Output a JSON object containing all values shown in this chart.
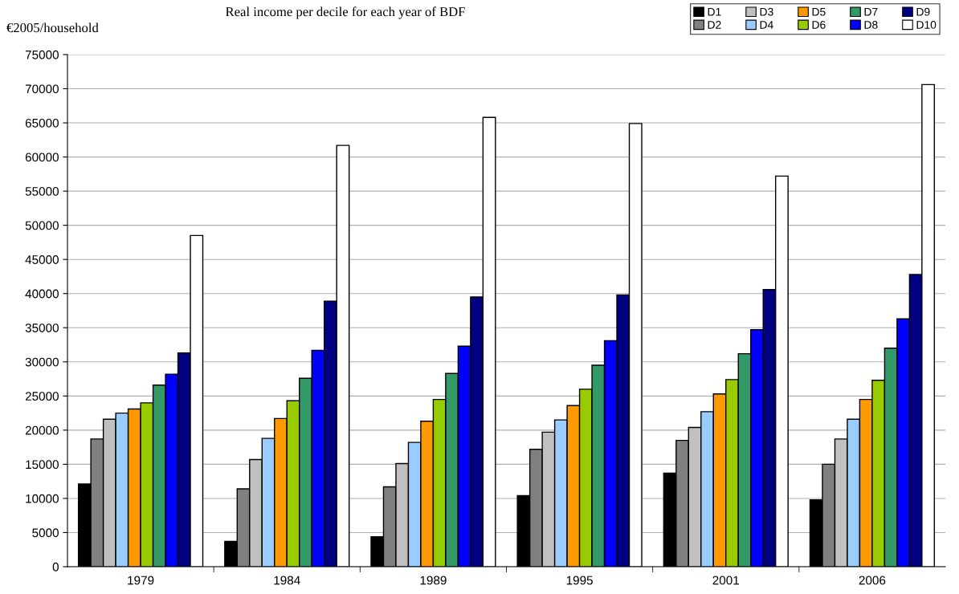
{
  "chart_data": {
    "type": "bar",
    "title": "Real income per decile for each year of BDF",
    "ylabel": "€2005/household",
    "categories": [
      "1979",
      "1984",
      "1989",
      "1995",
      "2001",
      "2006"
    ],
    "series": [
      {
        "name": "D1",
        "color": "#000000",
        "values": [
          12100,
          3700,
          4400,
          10400,
          13700,
          9800
        ]
      },
      {
        "name": "D2",
        "color": "#808080",
        "values": [
          18700,
          11400,
          11700,
          17200,
          18500,
          15000
        ]
      },
      {
        "name": "D3",
        "color": "#c0c0c0",
        "values": [
          21600,
          15700,
          15100,
          19700,
          20400,
          18700
        ]
      },
      {
        "name": "D4",
        "color": "#99ccff",
        "values": [
          22500,
          18800,
          18200,
          21500,
          22700,
          21600
        ]
      },
      {
        "name": "D5",
        "color": "#ff9900",
        "values": [
          23100,
          21700,
          21300,
          23600,
          25300,
          24500
        ]
      },
      {
        "name": "D6",
        "color": "#99cc00",
        "values": [
          24000,
          24300,
          24500,
          26000,
          27400,
          27300
        ]
      },
      {
        "name": "D7",
        "color": "#339966",
        "values": [
          26600,
          27600,
          28300,
          29500,
          31200,
          32000
        ]
      },
      {
        "name": "D8",
        "color": "#0000ff",
        "values": [
          28200,
          31700,
          32300,
          33100,
          34700,
          36300
        ]
      },
      {
        "name": "D9",
        "color": "#000080",
        "values": [
          31300,
          38900,
          39500,
          39800,
          40600,
          42800
        ]
      },
      {
        "name": "D10",
        "color": "#ffffff",
        "values": [
          48500,
          61700,
          65800,
          64900,
          57200,
          70600
        ]
      }
    ],
    "ylim": [
      0,
      75000
    ],
    "yticks": [
      0,
      5000,
      10000,
      15000,
      20000,
      25000,
      30000,
      35000,
      40000,
      45000,
      50000,
      55000,
      60000,
      65000,
      70000,
      75000
    ],
    "grid": "y",
    "legend": "top right"
  }
}
